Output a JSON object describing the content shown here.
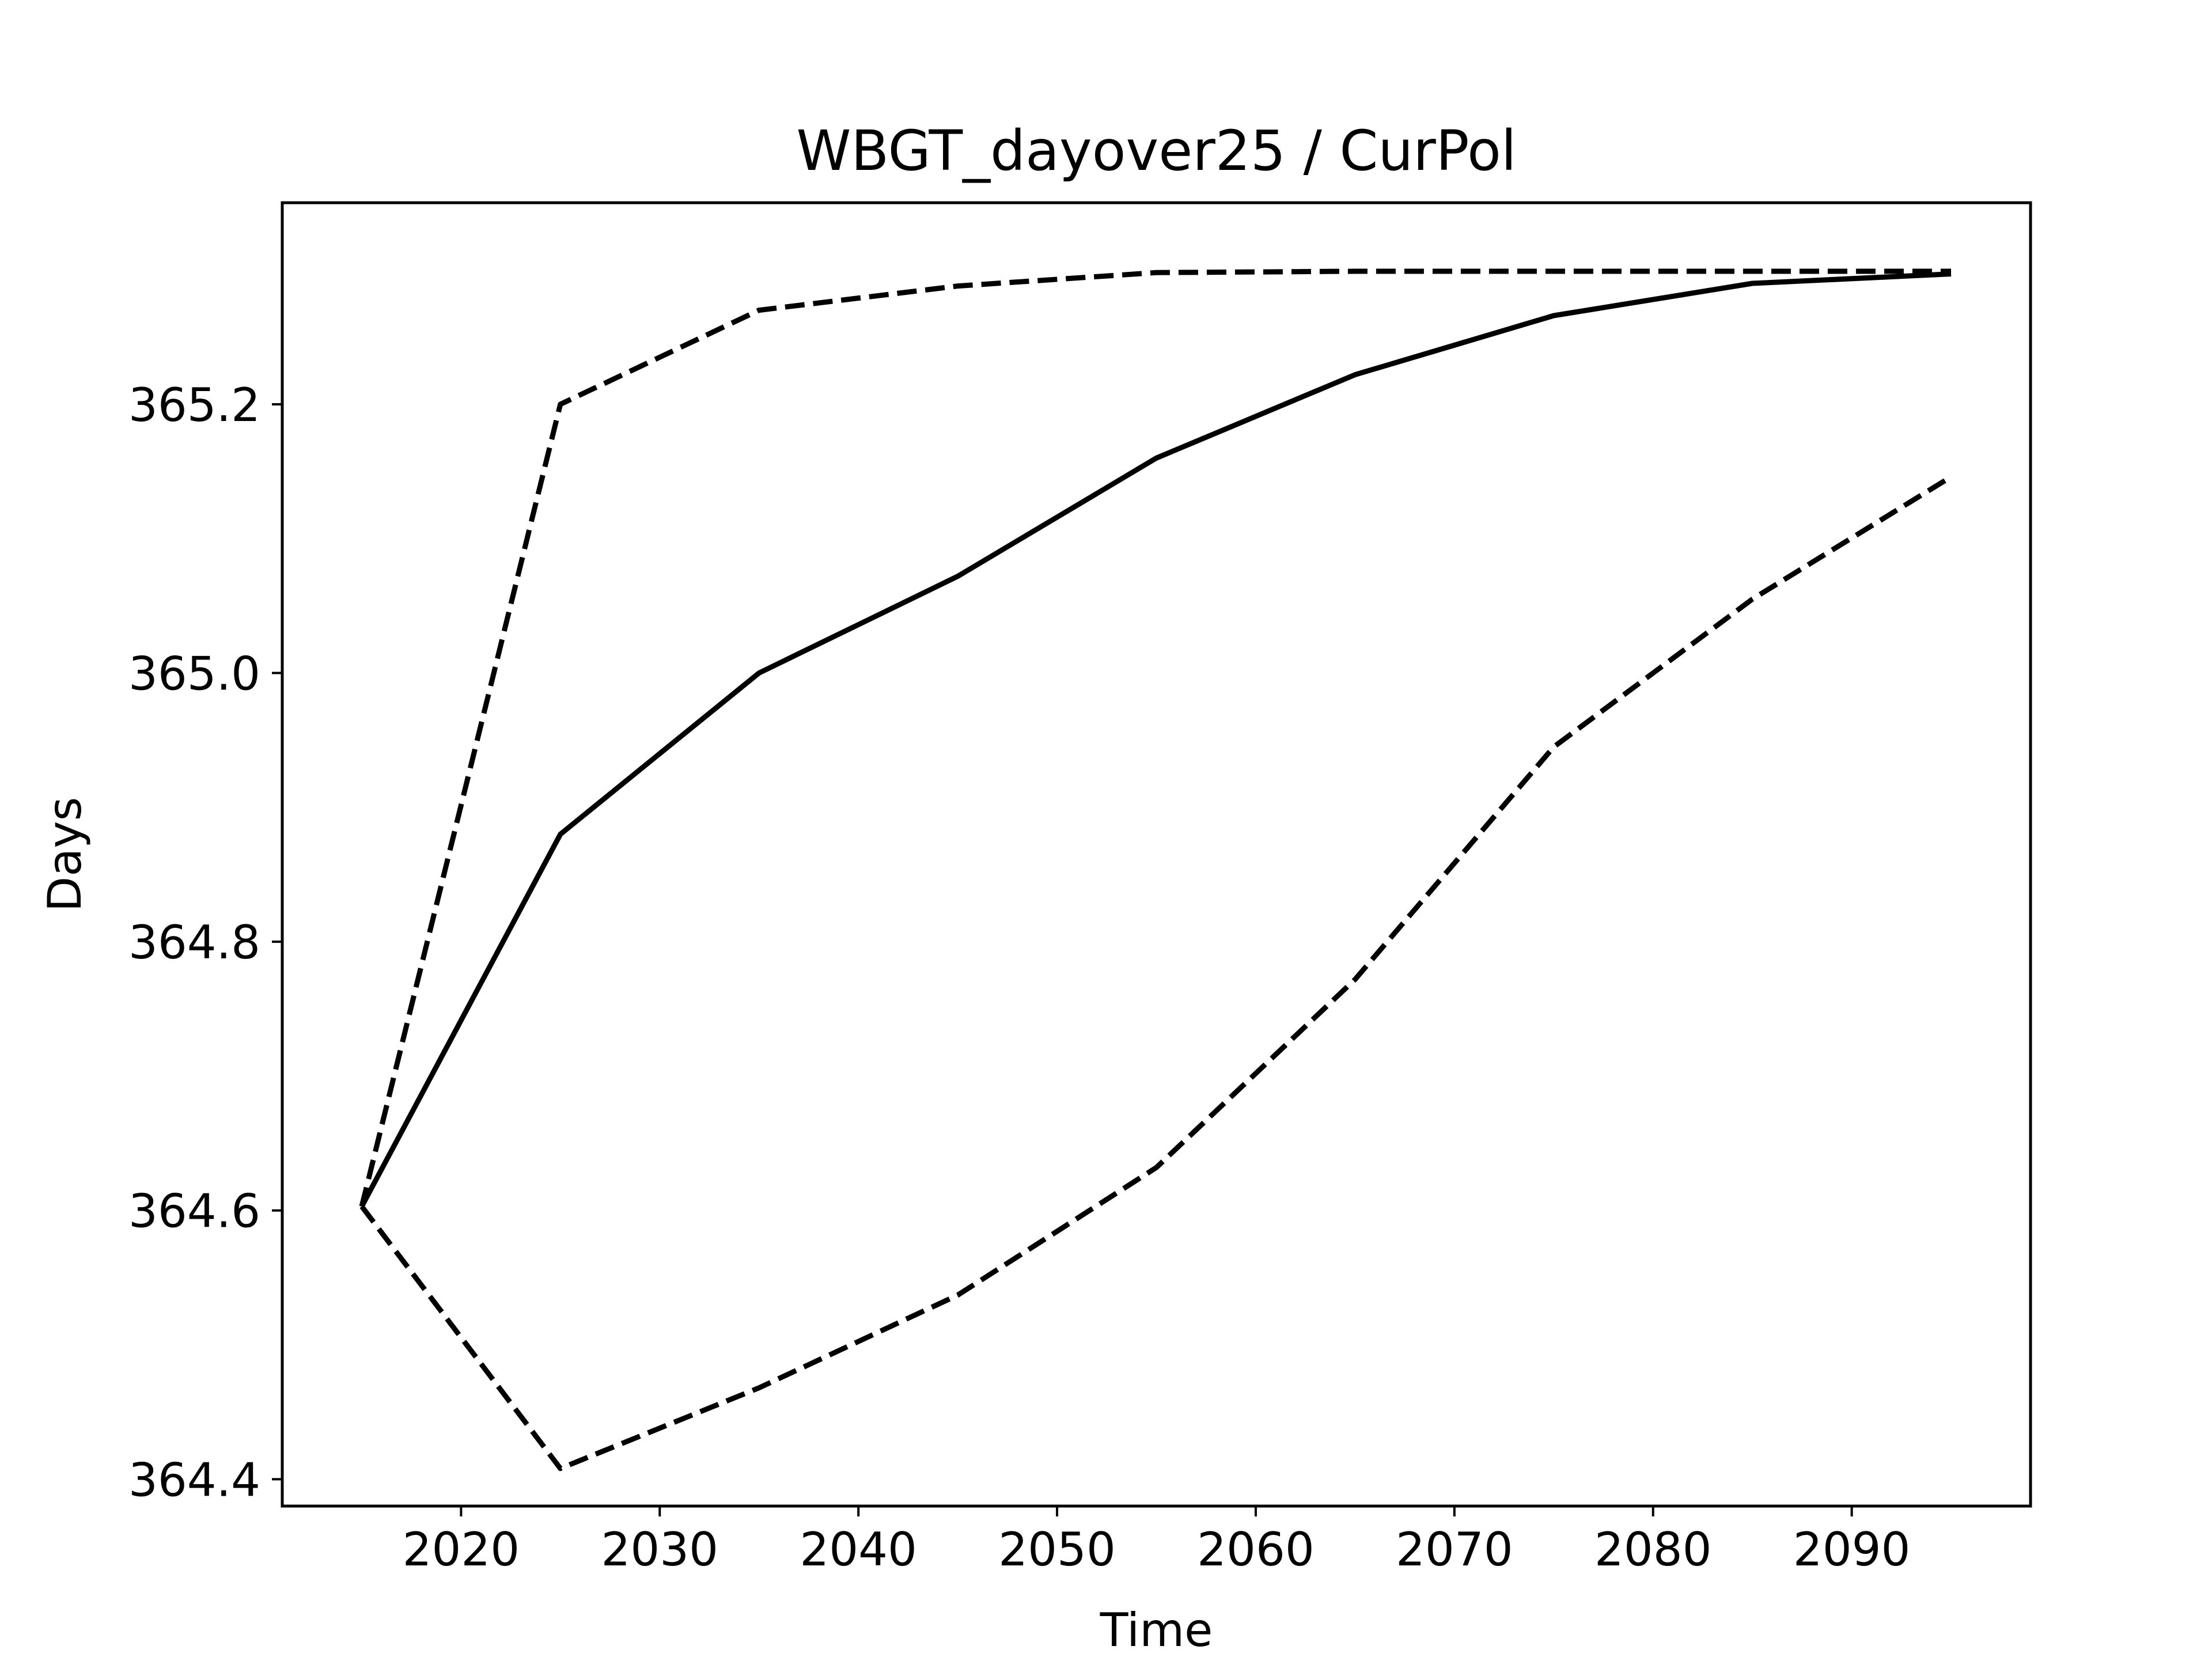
{
  "chart_data": {
    "type": "line",
    "title": "WBGT_dayover25 / CurPol",
    "xlabel": "Time",
    "ylabel": "Days",
    "xlim": [
      2011,
      2099
    ],
    "ylim": [
      364.38,
      365.35
    ],
    "x_ticks": [
      2020,
      2030,
      2040,
      2050,
      2060,
      2070,
      2080,
      2090
    ],
    "y_ticks": [
      364.4,
      364.6,
      364.8,
      365.0,
      365.2
    ],
    "x_tick_labels": [
      "2020",
      "2030",
      "2040",
      "2050",
      "2060",
      "2070",
      "2080",
      "2090"
    ],
    "y_tick_labels": [
      "364.4",
      "364.6",
      "364.8",
      "365.0",
      "365.2"
    ],
    "grid": false,
    "legend": "none",
    "x": [
      2015,
      2025,
      2035,
      2045,
      2055,
      2065,
      2075,
      2085,
      2095
    ],
    "series": [
      {
        "style": "dashed",
        "color": "#000000",
        "values": [
          364.603,
          365.2,
          365.27,
          365.288,
          365.298,
          365.299,
          365.299,
          365.299,
          365.299
        ]
      },
      {
        "style": "solid",
        "color": "#000000",
        "values": [
          364.603,
          364.88,
          365.0,
          365.072,
          365.16,
          365.222,
          365.266,
          365.29,
          365.297
        ]
      },
      {
        "style": "dashed",
        "color": "#000000",
        "values": [
          364.603,
          364.408,
          364.468,
          364.537,
          364.632,
          364.772,
          364.945,
          365.055,
          365.146
        ]
      }
    ]
  }
}
